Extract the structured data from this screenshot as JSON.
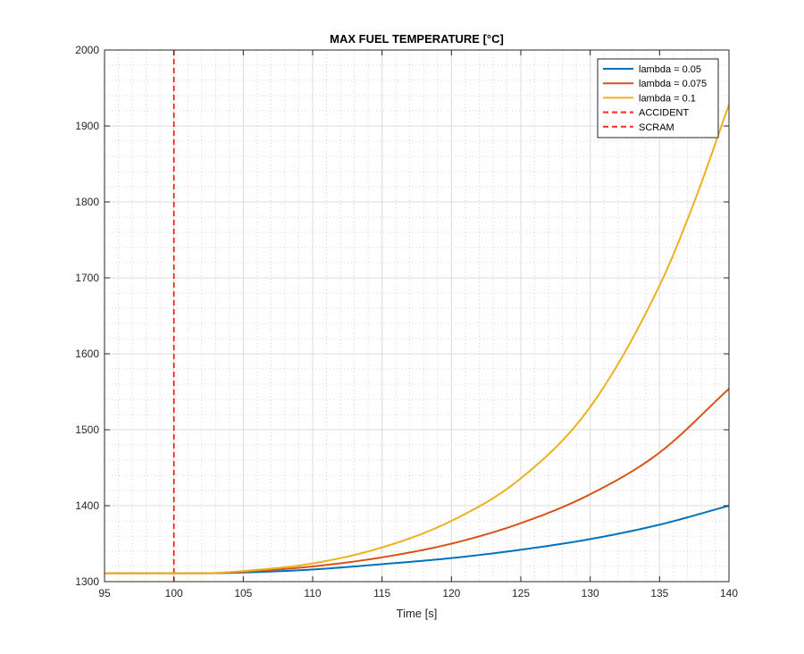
{
  "chart_data": {
    "type": "line",
    "title": "MAX FUEL TEMPERATURE [°C]",
    "xlabel": "Time [s]",
    "ylabel": "",
    "xlim": [
      95,
      140
    ],
    "ylim": [
      1300,
      2000
    ],
    "xticks": [
      "95",
      "100",
      "105",
      "110",
      "115",
      "120",
      "125",
      "130",
      "135",
      "140"
    ],
    "yticks": [
      "1300",
      "1400",
      "1500",
      "1600",
      "1700",
      "1800",
      "1900",
      "2000"
    ],
    "grid": true,
    "minor_grid": true,
    "legend_position": "top-right",
    "series": [
      {
        "name": "lambda = 0.05",
        "color": "#0072BD",
        "style": "solid",
        "x": [
          95,
          100,
          102,
          105,
          110,
          115,
          120,
          125,
          130,
          135,
          140
        ],
        "y": [
          1311,
          1311,
          1311,
          1312,
          1316,
          1323,
          1331,
          1342,
          1356,
          1375,
          1400
        ]
      },
      {
        "name": "lambda = 0.075",
        "color": "#D95319",
        "style": "solid",
        "x": [
          95,
          100,
          102,
          105,
          110,
          115,
          120,
          125,
          130,
          135,
          140
        ],
        "y": [
          1311,
          1311,
          1311,
          1313,
          1320,
          1332,
          1350,
          1377,
          1415,
          1470,
          1554
        ]
      },
      {
        "name": "lambda = 0.1",
        "color": "#EDB120",
        "style": "solid",
        "x": [
          95,
          100,
          102,
          105,
          110,
          115,
          120,
          125,
          130,
          135,
          137.5,
          140
        ],
        "y": [
          1311,
          1311,
          1311,
          1314,
          1324,
          1345,
          1380,
          1436,
          1530,
          1690,
          1800,
          1928
        ]
      }
    ],
    "vlines": [
      {
        "name": "ACCIDENT",
        "x": 100,
        "color": "#FF0000",
        "style": "dashed"
      },
      {
        "name": "SCRAM",
        "x": 100,
        "color": "#FF0000",
        "style": "dashed"
      }
    ]
  }
}
